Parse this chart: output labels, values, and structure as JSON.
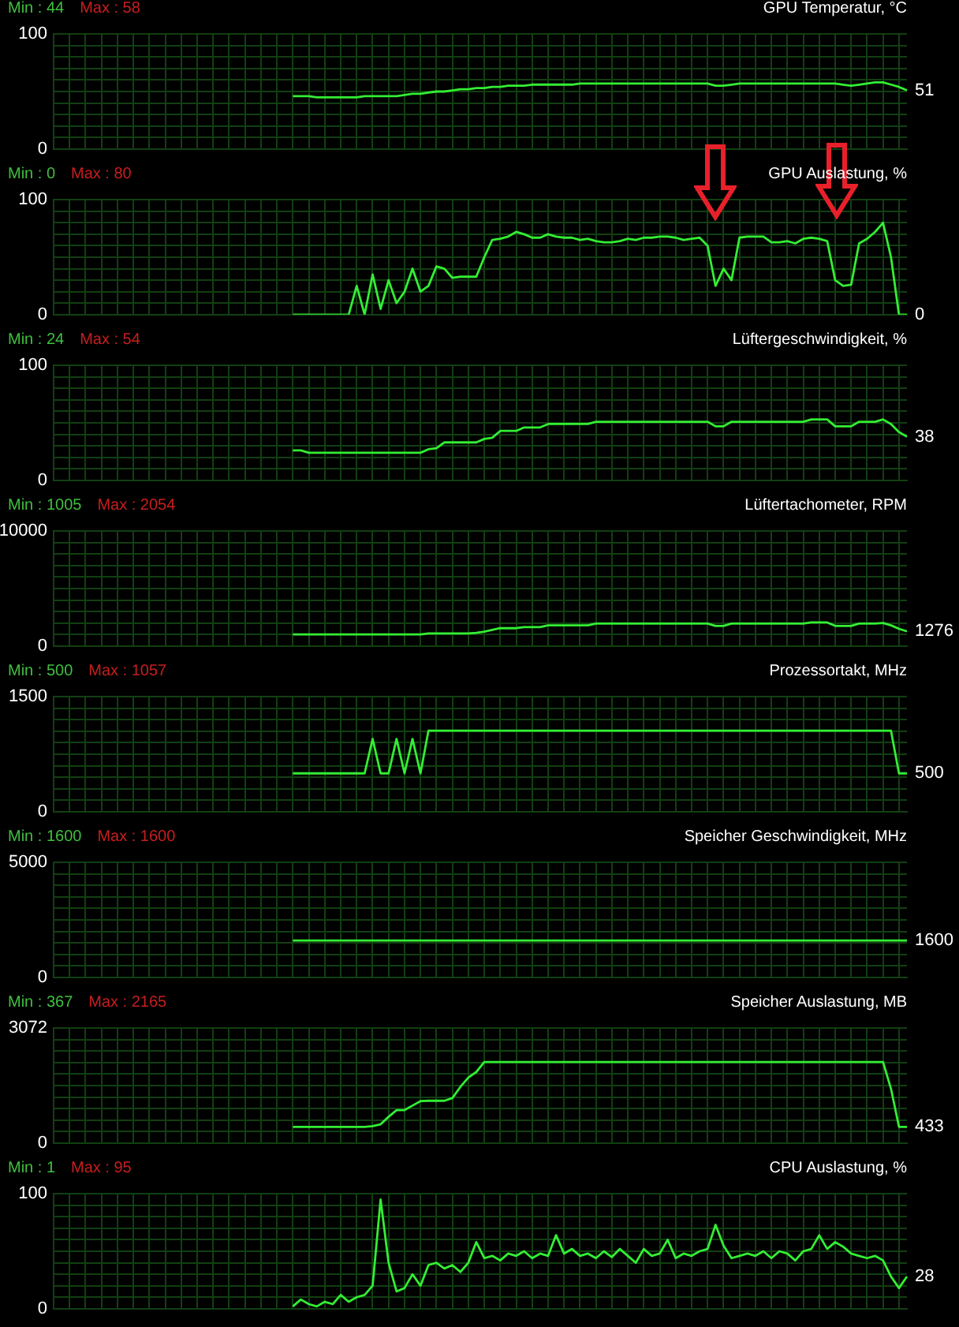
{
  "chart_data": [
    {
      "type": "line",
      "title": "GPU Temperatur, °C",
      "categories": [
        null,
        null,
        null,
        null,
        null,
        null,
        null,
        null,
        null,
        null,
        null,
        null,
        null,
        null,
        null,
        null,
        null,
        null,
        null,
        null,
        null,
        null,
        null,
        null,
        null,
        null,
        null,
        null,
        null,
        null,
        null,
        null,
        null,
        null,
        null,
        null,
        null,
        null,
        null,
        null,
        null,
        null,
        null,
        null,
        null,
        null,
        null,
        null,
        null,
        null,
        null,
        null,
        null,
        null,
        null,
        null,
        null,
        null,
        null,
        null,
        null,
        null,
        null,
        null,
        null,
        null,
        null,
        null,
        null,
        null,
        null,
        null,
        null,
        null,
        null,
        null,
        null,
        null,
        null,
        null,
        null,
        null,
        null,
        null,
        null,
        null,
        null,
        null,
        null,
        null,
        null,
        null,
        null,
        null,
        null,
        null,
        null,
        null,
        null,
        null,
        null,
        null,
        null,
        null,
        null,
        null,
        null,
        null
      ],
      "color": "#33ee33",
      "values": [
        null,
        null,
        null,
        null,
        null,
        null,
        null,
        null,
        null,
        null,
        null,
        null,
        null,
        null,
        null,
        null,
        null,
        null,
        null,
        null,
        null,
        null,
        null,
        null,
        null,
        null,
        null,
        null,
        null,
        null,
        46,
        46,
        46,
        45,
        45,
        45,
        45,
        45,
        45,
        46,
        46,
        46,
        46,
        46,
        47,
        48,
        48,
        49,
        50,
        50,
        51,
        52,
        52,
        53,
        53,
        54,
        54,
        55,
        55,
        55,
        56,
        56,
        56,
        56,
        56,
        56,
        57,
        57,
        57,
        57,
        57,
        57,
        57,
        57,
        57,
        57,
        57,
        57,
        57,
        57,
        57,
        57,
        57,
        55,
        55,
        56,
        57,
        57,
        57,
        57,
        57,
        57,
        57,
        57,
        57,
        57,
        57,
        57,
        57,
        56,
        55,
        56,
        57,
        58,
        58,
        56,
        54,
        51
      ],
      "ylim": [
        0,
        100
      ],
      "yticks": [
        0,
        {
          "value": 10,
          "label": null
        },
        {
          "value": 20,
          "label": null
        },
        {
          "value": 30,
          "label": null
        },
        {
          "value": 40,
          "label": null
        },
        {
          "value": 50,
          "label": null
        },
        {
          "value": 60,
          "label": null
        },
        {
          "value": 70,
          "label": null
        },
        {
          "value": 80,
          "label": null
        },
        {
          "value": 90,
          "label": null
        },
        100
      ],
      "grid": true,
      "tick_labels": "y",
      "annotations": [
        "Min : 44",
        "Max : 58",
        "51"
      ]
    },
    {
      "type": "line",
      "title": "GPU Auslastung, %",
      "categories": [
        null,
        null,
        null,
        null,
        null,
        null,
        null,
        null,
        null,
        null,
        null,
        null,
        null,
        null,
        null,
        null,
        null,
        null,
        null,
        null,
        null,
        null,
        null,
        null,
        null,
        null,
        null,
        null,
        null,
        null,
        null,
        null,
        null,
        null,
        null,
        null,
        null,
        null,
        null,
        null,
        null,
        null,
        null,
        null,
        null,
        null,
        null,
        null,
        null,
        null,
        null,
        null,
        null,
        null,
        null,
        null,
        null,
        null,
        null,
        null,
        null,
        null,
        null,
        null,
        null,
        null,
        null,
        null,
        null,
        null,
        null,
        null,
        null,
        null,
        null,
        null,
        null,
        null,
        null,
        null,
        null,
        null,
        null,
        null,
        null,
        null,
        null,
        null,
        null,
        null,
        null,
        null,
        null,
        null,
        null,
        null,
        null,
        null,
        null,
        null,
        null,
        null,
        null,
        null,
        null,
        null,
        null,
        null
      ],
      "color": "#33ee33",
      "values": [
        null,
        null,
        null,
        null,
        null,
        null,
        null,
        null,
        null,
        null,
        null,
        null,
        null,
        null,
        null,
        null,
        null,
        null,
        null,
        null,
        null,
        null,
        null,
        null,
        null,
        null,
        null,
        null,
        null,
        null,
        0,
        0,
        0,
        0,
        0,
        0,
        0,
        0,
        25,
        0,
        35,
        5,
        30,
        10,
        20,
        40,
        20,
        25,
        42,
        40,
        32,
        33,
        33,
        33,
        50,
        65,
        66,
        68,
        72,
        70,
        67,
        67,
        70,
        68,
        67,
        67,
        65,
        66,
        64,
        63,
        63,
        64,
        66,
        65,
        67,
        67,
        68,
        68,
        67,
        65,
        66,
        67,
        60,
        25,
        40,
        30,
        67,
        68,
        68,
        68,
        63,
        63,
        64,
        62,
        66,
        67,
        66,
        64,
        30,
        25,
        26,
        62,
        66,
        72,
        80,
        50,
        0,
        0
      ],
      "ylim": [
        0,
        100
      ],
      "yticks": [
        0,
        {
          "value": 10,
          "label": null
        },
        {
          "value": 20,
          "label": null
        },
        {
          "value": 30,
          "label": null
        },
        {
          "value": 40,
          "label": null
        },
        {
          "value": 50,
          "label": null
        },
        {
          "value": 60,
          "label": null
        },
        {
          "value": 70,
          "label": null
        },
        {
          "value": 80,
          "label": null
        },
        {
          "value": 90,
          "label": null
        },
        100
      ],
      "grid": true,
      "tick_labels": "y",
      "annotations": [
        "Min : 0",
        "Max : 80",
        "0"
      ]
    },
    {
      "type": "line",
      "title": "Lüftergeschwindigkeit, %",
      "categories": [
        null,
        null,
        null,
        null,
        null,
        null,
        null,
        null,
        null,
        null,
        null,
        null,
        null,
        null,
        null,
        null,
        null,
        null,
        null,
        null,
        null,
        null,
        null,
        null,
        null,
        null,
        null,
        null,
        null,
        null,
        null,
        null,
        null,
        null,
        null,
        null,
        null,
        null,
        null,
        null,
        null,
        null,
        null,
        null,
        null,
        null,
        null,
        null,
        null,
        null,
        null,
        null,
        null,
        null,
        null,
        null,
        null,
        null,
        null,
        null,
        null,
        null,
        null,
        null,
        null,
        null,
        null,
        null,
        null,
        null,
        null,
        null,
        null,
        null,
        null,
        null,
        null,
        null,
        null,
        null,
        null,
        null,
        null,
        null,
        null,
        null,
        null,
        null,
        null,
        null,
        null,
        null,
        null,
        null,
        null,
        null,
        null,
        null,
        null,
        null,
        null,
        null,
        null,
        null,
        null,
        null,
        null,
        null
      ],
      "color": "#33ee33",
      "values": [
        null,
        null,
        null,
        null,
        null,
        null,
        null,
        null,
        null,
        null,
        null,
        null,
        null,
        null,
        null,
        null,
        null,
        null,
        null,
        null,
        null,
        null,
        null,
        null,
        null,
        null,
        null,
        null,
        null,
        null,
        26,
        26,
        24,
        24,
        24,
        24,
        24,
        24,
        24,
        24,
        24,
        24,
        24,
        24,
        24,
        24,
        24,
        27,
        28,
        33,
        33,
        33,
        33,
        33,
        36,
        37,
        43,
        43,
        43,
        46,
        46,
        46,
        49,
        49,
        49,
        49,
        49,
        49,
        51,
        51,
        51,
        51,
        51,
        51,
        51,
        51,
        51,
        51,
        51,
        51,
        51,
        51,
        51,
        47,
        47,
        51,
        51,
        51,
        51,
        51,
        51,
        51,
        51,
        51,
        51,
        53,
        53,
        53,
        47,
        47,
        47,
        51,
        51,
        51,
        53,
        49,
        42,
        38
      ],
      "ylim": [
        0,
        100
      ],
      "yticks": [
        0,
        {
          "value": 10,
          "label": null
        },
        {
          "value": 20,
          "label": null
        },
        {
          "value": 30,
          "label": null
        },
        {
          "value": 40,
          "label": null
        },
        {
          "value": 50,
          "label": null
        },
        {
          "value": 60,
          "label": null
        },
        {
          "value": 70,
          "label": null
        },
        {
          "value": 80,
          "label": null
        },
        {
          "value": 90,
          "label": null
        },
        100
      ],
      "grid": true,
      "tick_labels": "y",
      "annotations": [
        "Min : 24",
        "Max : 54",
        "38"
      ]
    },
    {
      "type": "line",
      "title": "Lüftertachometer, RPM",
      "categories": [
        null,
        null,
        null,
        null,
        null,
        null,
        null,
        null,
        null,
        null,
        null,
        null,
        null,
        null,
        null,
        null,
        null,
        null,
        null,
        null,
        null,
        null,
        null,
        null,
        null,
        null,
        null,
        null,
        null,
        null,
        null,
        null,
        null,
        null,
        null,
        null,
        null,
        null,
        null,
        null,
        null,
        null,
        null,
        null,
        null,
        null,
        null,
        null,
        null,
        null,
        null,
        null,
        null,
        null,
        null,
        null,
        null,
        null,
        null,
        null,
        null,
        null,
        null,
        null,
        null,
        null,
        null,
        null,
        null,
        null,
        null,
        null,
        null,
        null,
        null,
        null,
        null,
        null,
        null,
        null,
        null,
        null,
        null,
        null,
        null,
        null,
        null,
        null,
        null,
        null,
        null,
        null,
        null,
        null,
        null,
        null,
        null,
        null,
        null,
        null,
        null,
        null,
        null,
        null,
        null,
        null,
        null,
        null
      ],
      "color": "#33ee33",
      "values": [
        null,
        null,
        null,
        null,
        null,
        null,
        null,
        null,
        null,
        null,
        null,
        null,
        null,
        null,
        null,
        null,
        null,
        null,
        null,
        null,
        null,
        null,
        null,
        null,
        null,
        null,
        null,
        null,
        null,
        null,
        1005,
        1005,
        1005,
        1005,
        1005,
        1005,
        1005,
        1005,
        1005,
        1005,
        1005,
        1005,
        1005,
        1005,
        1005,
        1005,
        1005,
        1100,
        1100,
        1100,
        1100,
        1100,
        1100,
        1150,
        1250,
        1400,
        1550,
        1550,
        1550,
        1650,
        1650,
        1650,
        1800,
        1800,
        1800,
        1800,
        1800,
        1800,
        1950,
        1950,
        1950,
        1950,
        1950,
        1950,
        1950,
        1950,
        1950,
        1950,
        1950,
        1950,
        1950,
        1950,
        1950,
        1750,
        1750,
        1950,
        1950,
        1950,
        1950,
        1950,
        1950,
        1950,
        1950,
        1950,
        1950,
        2050,
        2050,
        2050,
        1750,
        1750,
        1750,
        1950,
        1950,
        1950,
        2000,
        1800,
        1500,
        1276
      ],
      "ylim": [
        0,
        10000
      ],
      "yticks": [
        0,
        {
          "value": 1000,
          "label": null
        },
        {
          "value": 2000,
          "label": null
        },
        {
          "value": 3000,
          "label": null
        },
        {
          "value": 4000,
          "label": null
        },
        {
          "value": 5000,
          "label": null
        },
        {
          "value": 6000,
          "label": null
        },
        {
          "value": 7000,
          "label": null
        },
        {
          "value": 8000,
          "label": null
        },
        {
          "value": 9000,
          "label": null
        },
        10000
      ],
      "grid": true,
      "tick_labels": "y",
      "annotations": [
        "Min : 1005",
        "Max : 2054",
        "1276"
      ]
    },
    {
      "type": "line",
      "title": "Prozessortakt, MHz",
      "categories": [
        null,
        null,
        null,
        null,
        null,
        null,
        null,
        null,
        null,
        null,
        null,
        null,
        null,
        null,
        null,
        null,
        null,
        null,
        null,
        null,
        null,
        null,
        null,
        null,
        null,
        null,
        null,
        null,
        null,
        null,
        null,
        null,
        null,
        null,
        null,
        null,
        null,
        null,
        null,
        null,
        null,
        null,
        null,
        null,
        null,
        null,
        null,
        null,
        null,
        null,
        null,
        null,
        null,
        null,
        null,
        null,
        null,
        null,
        null,
        null,
        null,
        null,
        null,
        null,
        null,
        null,
        null,
        null,
        null,
        null,
        null,
        null,
        null,
        null,
        null,
        null,
        null,
        null,
        null,
        null,
        null,
        null,
        null,
        null,
        null,
        null,
        null,
        null,
        null,
        null,
        null,
        null,
        null,
        null,
        null,
        null,
        null,
        null,
        null,
        null,
        null,
        null,
        null,
        null,
        null,
        null,
        null,
        null
      ],
      "color": "#33ee33",
      "values": [
        null,
        null,
        null,
        null,
        null,
        null,
        null,
        null,
        null,
        null,
        null,
        null,
        null,
        null,
        null,
        null,
        null,
        null,
        null,
        null,
        null,
        null,
        null,
        null,
        null,
        null,
        null,
        null,
        null,
        null,
        500,
        500,
        500,
        500,
        500,
        500,
        500,
        500,
        500,
        500,
        950,
        500,
        500,
        950,
        500,
        950,
        500,
        1057,
        1057,
        1057,
        1057,
        1057,
        1057,
        1057,
        1057,
        1057,
        1057,
        1057,
        1057,
        1057,
        1057,
        1057,
        1057,
        1057,
        1057,
        1057,
        1057,
        1057,
        1057,
        1057,
        1057,
        1057,
        1057,
        1057,
        1057,
        1057,
        1057,
        1057,
        1057,
        1057,
        1057,
        1057,
        1057,
        1057,
        1057,
        1057,
        1057,
        1057,
        1057,
        1057,
        1057,
        1057,
        1057,
        1057,
        1057,
        1057,
        1057,
        1057,
        1057,
        1057,
        1057,
        1057,
        1057,
        1057,
        1057,
        1057,
        500,
        500
      ],
      "ylim": [
        0,
        1500
      ],
      "yticks": [
        0,
        {
          "value": 150,
          "label": null
        },
        {
          "value": 300,
          "label": null
        },
        {
          "value": 450,
          "label": null
        },
        {
          "value": 600,
          "label": null
        },
        {
          "value": 750,
          "label": null
        },
        {
          "value": 900,
          "label": null
        },
        {
          "value": 1050,
          "label": null
        },
        {
          "value": 1200,
          "label": null
        },
        {
          "value": 1350,
          "label": null
        },
        1500
      ],
      "grid": true,
      "tick_labels": "y",
      "annotations": [
        "Min : 500",
        "Max : 1057",
        "500"
      ]
    },
    {
      "type": "line",
      "title": "Speicher Geschwindigkeit, MHz",
      "categories": [
        null,
        null,
        null,
        null,
        null,
        null,
        null,
        null,
        null,
        null,
        null,
        null,
        null,
        null,
        null,
        null,
        null,
        null,
        null,
        null,
        null,
        null,
        null,
        null,
        null,
        null,
        null,
        null,
        null,
        null,
        null,
        null,
        null,
        null,
        null,
        null,
        null,
        null,
        null,
        null,
        null,
        null,
        null,
        null,
        null,
        null,
        null,
        null,
        null,
        null,
        null,
        null,
        null,
        null,
        null,
        null,
        null,
        null,
        null,
        null,
        null,
        null,
        null,
        null,
        null,
        null,
        null,
        null,
        null,
        null,
        null,
        null,
        null,
        null,
        null,
        null,
        null,
        null,
        null,
        null,
        null,
        null,
        null,
        null,
        null,
        null,
        null,
        null,
        null,
        null,
        null,
        null,
        null,
        null,
        null,
        null,
        null,
        null,
        null,
        null,
        null,
        null,
        null,
        null,
        null,
        null,
        null,
        null
      ],
      "color": "#33ee33",
      "values": [
        null,
        null,
        null,
        null,
        null,
        null,
        null,
        null,
        null,
        null,
        null,
        null,
        null,
        null,
        null,
        null,
        null,
        null,
        null,
        null,
        null,
        null,
        null,
        null,
        null,
        null,
        null,
        null,
        null,
        null,
        1600,
        1600,
        1600,
        1600,
        1600,
        1600,
        1600,
        1600,
        1600,
        1600,
        1600,
        1600,
        1600,
        1600,
        1600,
        1600,
        1600,
        1600,
        1600,
        1600,
        1600,
        1600,
        1600,
        1600,
        1600,
        1600,
        1600,
        1600,
        1600,
        1600,
        1600,
        1600,
        1600,
        1600,
        1600,
        1600,
        1600,
        1600,
        1600,
        1600,
        1600,
        1600,
        1600,
        1600,
        1600,
        1600,
        1600,
        1600,
        1600,
        1600,
        1600,
        1600,
        1600,
        1600,
        1600,
        1600,
        1600,
        1600,
        1600,
        1600,
        1600,
        1600,
        1600,
        1600,
        1600,
        1600,
        1600,
        1600,
        1600,
        1600,
        1600,
        1600,
        1600,
        1600,
        1600,
        1600,
        1600,
        1600
      ],
      "ylim": [
        0,
        5000
      ],
      "yticks": [
        0,
        {
          "value": 500,
          "label": null
        },
        {
          "value": 1000,
          "label": null
        },
        {
          "value": 1500,
          "label": null
        },
        {
          "value": 2000,
          "label": null
        },
        {
          "value": 2500,
          "label": null
        },
        {
          "value": 3000,
          "label": null
        },
        {
          "value": 3500,
          "label": null
        },
        {
          "value": 4000,
          "label": null
        },
        {
          "value": 4500,
          "label": null
        },
        5000
      ],
      "grid": true,
      "tick_labels": "y",
      "annotations": [
        "Min : 1600",
        "Max : 1600",
        "1600"
      ]
    },
    {
      "type": "line",
      "title": "Speicher Auslastung, MB",
      "categories": [
        null,
        null,
        null,
        null,
        null,
        null,
        null,
        null,
        null,
        null,
        null,
        null,
        null,
        null,
        null,
        null,
        null,
        null,
        null,
        null,
        null,
        null,
        null,
        null,
        null,
        null,
        null,
        null,
        null,
        null,
        null,
        null,
        null,
        null,
        null,
        null,
        null,
        null,
        null,
        null,
        null,
        null,
        null,
        null,
        null,
        null,
        null,
        null,
        null,
        null,
        null,
        null,
        null,
        null,
        null,
        null,
        null,
        null,
        null,
        null,
        null,
        null,
        null,
        null,
        null,
        null,
        null,
        null,
        null,
        null,
        null,
        null,
        null,
        null,
        null,
        null,
        null,
        null,
        null,
        null,
        null,
        null,
        null,
        null,
        null,
        null,
        null,
        null,
        null,
        null,
        null,
        null,
        null,
        null,
        null,
        null,
        null,
        null,
        null,
        null,
        null,
        null,
        null,
        null,
        null,
        null,
        null,
        null
      ],
      "color": "#33ee33",
      "values": [
        null,
        null,
        null,
        null,
        null,
        null,
        null,
        null,
        null,
        null,
        null,
        null,
        null,
        null,
        null,
        null,
        null,
        null,
        null,
        null,
        null,
        null,
        null,
        null,
        null,
        null,
        null,
        null,
        null,
        null,
        433,
        433,
        433,
        433,
        433,
        433,
        433,
        433,
        433,
        433,
        450,
        500,
        700,
        880,
        880,
        1000,
        1120,
        1130,
        1130,
        1130,
        1200,
        1500,
        1750,
        1900,
        2165,
        2165,
        2165,
        2165,
        2165,
        2165,
        2165,
        2165,
        2165,
        2165,
        2165,
        2165,
        2165,
        2165,
        2165,
        2165,
        2165,
        2165,
        2165,
        2165,
        2165,
        2165,
        2165,
        2165,
        2165,
        2165,
        2165,
        2165,
        2165,
        2165,
        2165,
        2165,
        2165,
        2165,
        2165,
        2165,
        2165,
        2165,
        2165,
        2165,
        2165,
        2165,
        2165,
        2165,
        2165,
        2165,
        2165,
        2165,
        2165,
        2165,
        2165,
        1450,
        433,
        433
      ],
      "ylim": [
        0,
        3072
      ],
      "yticks": [
        0,
        {
          "value": 307.2,
          "label": null
        },
        {
          "value": 614.4,
          "label": null
        },
        {
          "value": 921.6,
          "label": null
        },
        {
          "value": 1228.8,
          "label": null
        },
        {
          "value": 1536,
          "label": null
        },
        {
          "value": 1843.2,
          "label": null
        },
        {
          "value": 2150.4,
          "label": null
        },
        {
          "value": 2457.6,
          "label": null
        },
        {
          "value": 2764.8,
          "label": null
        },
        3072
      ],
      "grid": true,
      "tick_labels": "y",
      "annotations": [
        "Min : 367",
        "Max : 2165",
        "433"
      ]
    },
    {
      "type": "line",
      "title": "CPU Auslastung, %",
      "categories": [
        null,
        null,
        null,
        null,
        null,
        null,
        null,
        null,
        null,
        null,
        null,
        null,
        null,
        null,
        null,
        null,
        null,
        null,
        null,
        null,
        null,
        null,
        null,
        null,
        null,
        null,
        null,
        null,
        null,
        null,
        null,
        null,
        null,
        null,
        null,
        null,
        null,
        null,
        null,
        null,
        null,
        null,
        null,
        null,
        null,
        null,
        null,
        null,
        null,
        null,
        null,
        null,
        null,
        null,
        null,
        null,
        null,
        null,
        null,
        null,
        null,
        null,
        null,
        null,
        null,
        null,
        null,
        null,
        null,
        null,
        null,
        null,
        null,
        null,
        null,
        null,
        null,
        null,
        null,
        null,
        null,
        null,
        null,
        null,
        null,
        null,
        null,
        null,
        null,
        null,
        null,
        null,
        null,
        null,
        null,
        null,
        null,
        null,
        null,
        null,
        null,
        null,
        null,
        null,
        null,
        null,
        null,
        null
      ],
      "color": "#33ee33",
      "values": [
        null,
        null,
        null,
        null,
        null,
        null,
        null,
        null,
        null,
        null,
        null,
        null,
        null,
        null,
        null,
        null,
        null,
        null,
        null,
        null,
        null,
        null,
        null,
        null,
        null,
        null,
        null,
        null,
        null,
        null,
        2,
        8,
        4,
        2,
        6,
        4,
        12,
        6,
        10,
        12,
        20,
        95,
        40,
        15,
        18,
        30,
        20,
        38,
        40,
        35,
        38,
        32,
        40,
        58,
        44,
        46,
        42,
        48,
        46,
        50,
        44,
        48,
        46,
        64,
        48,
        52,
        46,
        48,
        44,
        50,
        45,
        52,
        46,
        40,
        52,
        46,
        48,
        60,
        44,
        48,
        46,
        50,
        52,
        73,
        55,
        44,
        46,
        48,
        46,
        50,
        44,
        50,
        48,
        42,
        50,
        52,
        64,
        52,
        58,
        54,
        48,
        46,
        44,
        46,
        42,
        28,
        18,
        28
      ],
      "ylim": [
        0,
        100
      ],
      "yticks": [
        0,
        {
          "value": 10,
          "label": null
        },
        {
          "value": 20,
          "label": null
        },
        {
          "value": 30,
          "label": null
        },
        {
          "value": 40,
          "label": null
        },
        {
          "value": 50,
          "label": null
        },
        {
          "value": 60,
          "label": null
        },
        {
          "value": 70,
          "label": null
        },
        {
          "value": 80,
          "label": null
        },
        {
          "value": 90,
          "label": null
        },
        100
      ],
      "grid": true,
      "tick_labels": "y",
      "annotations": [
        "Min : 1",
        "Max : 95",
        "28"
      ]
    }
  ]
}
